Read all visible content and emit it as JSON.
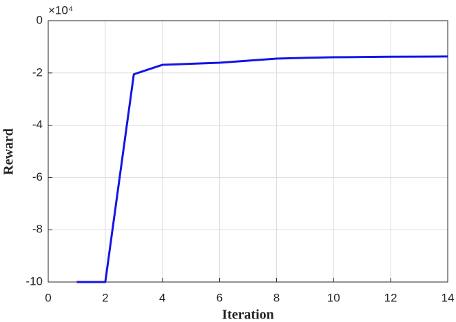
{
  "chart_data": {
    "type": "line",
    "x_label": "Iteration",
    "y_label": "Reward",
    "y_multiplier": "×10⁴",
    "x": [
      1,
      2,
      3,
      4,
      5,
      6,
      7,
      8,
      9,
      10,
      11,
      12,
      13,
      14
    ],
    "series": [
      {
        "name": "Reward",
        "color": "#1414e6",
        "values": [
          -100000,
          -100000,
          -20500,
          -16900,
          -16500,
          -16100,
          -15300,
          -14500,
          -14200,
          -14000,
          -13900,
          -13800,
          -13750,
          -13700
        ]
      }
    ],
    "xlim": [
      0,
      14
    ],
    "xticks": [
      0,
      2,
      4,
      6,
      8,
      10,
      12,
      14
    ],
    "ylim": [
      -100000,
      0
    ],
    "yticks": [
      {
        "value": -100000,
        "label": "-10"
      },
      {
        "value": -80000,
        "label": "-8"
      },
      {
        "value": -60000,
        "label": "-6"
      },
      {
        "value": -40000,
        "label": "-4"
      },
      {
        "value": -20000,
        "label": "-2"
      },
      0
    ],
    "grid": true
  }
}
